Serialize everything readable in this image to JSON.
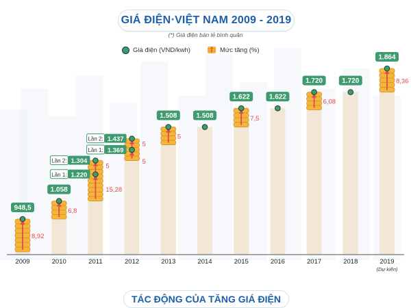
{
  "title_main": "GIÁ ĐIỆN",
  "title_star": "*",
  "title_rest": "VIỆT NAM 2009 - 2019",
  "subtitle": "(*) Giá điện bán lẻ bình quân",
  "legend": {
    "price_label": "Giá điện (VND/kwh)",
    "increase_label": "Mức tăng (%)"
  },
  "bottom_title": "TÁC ĐỘNG CỦA TĂNG GIÁ ĐIỆN",
  "colors": {
    "title_blue": "#1c5ea8",
    "green": "#3f9b6f",
    "coin": "#f5b53a",
    "coin_dark": "#d8902a",
    "bar": "#f2e6d6",
    "arrow": "#e04a4a",
    "increase_text": "#e04a4a"
  },
  "chart_data": {
    "type": "bar",
    "title": "GIÁ ĐIỆN* VIỆT NAM 2009 - 2019",
    "subtitle": "(*) Giá điện bán lẻ bình quân",
    "series_names": [
      "Giá điện (VND/kwh)",
      "Mức tăng (%)"
    ],
    "ylim": [
      0,
      2000
    ],
    "grid": false,
    "points": [
      {
        "year": "2009",
        "price": 948.5,
        "price_label": "948,5",
        "increase": 8.92,
        "increase_label": "8,92"
      },
      {
        "year": "2010",
        "price": 1058,
        "price_label": "1.058",
        "increase": 6.8,
        "increase_label": "6,8"
      },
      {
        "year": "2011",
        "price": 1304,
        "price_label": "1.304",
        "increase": 15.28,
        "increase_label": "15,28",
        "adjustments": [
          {
            "label": "Lần 1:",
            "price": 1220,
            "price_label": "1.220",
            "increase_label": "15,28"
          },
          {
            "label": "Lần 2:",
            "price": 1304,
            "price_label": "1.304",
            "increase_label": "5"
          }
        ]
      },
      {
        "year": "2012",
        "price": 1437,
        "price_label": "1.437",
        "increase": 5,
        "increase_label": "5",
        "adjustments": [
          {
            "label": "Lần 1:",
            "price": 1369,
            "price_label": "1.369",
            "increase_label": "5"
          },
          {
            "label": "Lần 2:",
            "price": 1437,
            "price_label": "1.437",
            "increase_label": "5"
          }
        ]
      },
      {
        "year": "2013",
        "price": 1508,
        "price_label": "1.508",
        "increase": 5,
        "increase_label": "5"
      },
      {
        "year": "2014",
        "price": 1508,
        "price_label": "1.508",
        "increase": null,
        "increase_label": ""
      },
      {
        "year": "2015",
        "price": 1622,
        "price_label": "1.622",
        "increase": 7.5,
        "increase_label": "7,5"
      },
      {
        "year": "2016",
        "price": 1622,
        "price_label": "1.622",
        "increase": null,
        "increase_label": ""
      },
      {
        "year": "2017",
        "price": 1720,
        "price_label": "1.720",
        "increase": 6.08,
        "increase_label": "6,08"
      },
      {
        "year": "2018",
        "price": 1720,
        "price_label": "1.720",
        "increase": null,
        "increase_label": ""
      },
      {
        "year": "2019",
        "price": 1864,
        "price_label": "1.864",
        "increase": 8.36,
        "increase_label": "8,36",
        "note": "(Dự kiến)"
      }
    ]
  }
}
